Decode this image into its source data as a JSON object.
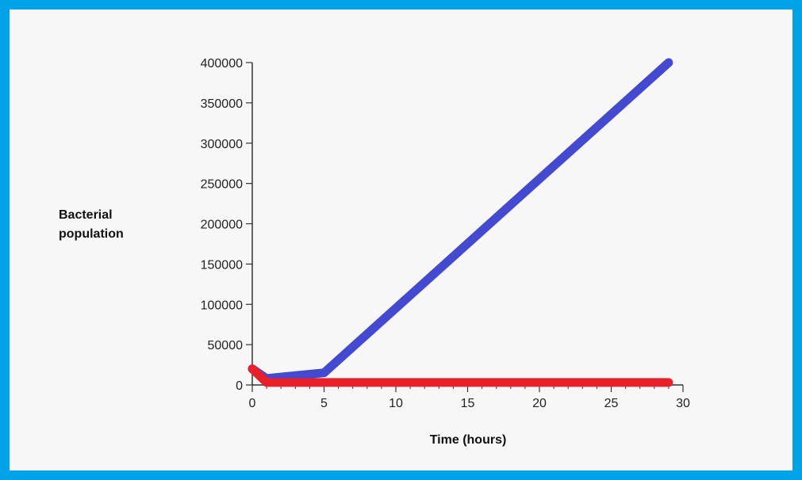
{
  "theme": {
    "frame_color": "#00a2e8",
    "background": "#f7f7f8",
    "axis_color": "#333333"
  },
  "chart_data": {
    "type": "line",
    "title": "",
    "xlabel": "Time (hours)",
    "ylabel_lines": [
      "Bacterial",
      "population"
    ],
    "xlim": [
      0,
      30
    ],
    "ylim": [
      0,
      400000
    ],
    "x_ticks": [
      0,
      5,
      10,
      15,
      20,
      25,
      30
    ],
    "y_ticks": [
      0,
      50000,
      100000,
      150000,
      200000,
      250000,
      300000,
      350000,
      400000
    ],
    "x_minor_step": 1,
    "grid": false,
    "legend": "none",
    "series": [
      {
        "color": "#4449d1",
        "x": [
          0,
          1,
          5,
          29
        ],
        "y": [
          20000,
          8000,
          15000,
          400000
        ]
      },
      {
        "color": "#e8202a",
        "x": [
          0,
          1,
          5,
          29
        ],
        "y": [
          20000,
          3000,
          3000,
          3000
        ]
      }
    ]
  }
}
